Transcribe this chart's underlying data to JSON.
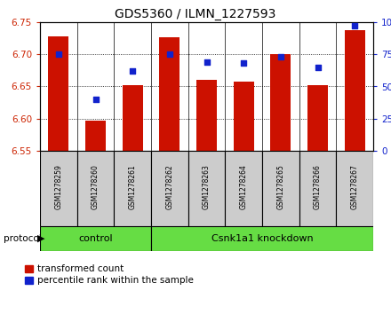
{
  "title": "GDS5360 / ILMN_1227593",
  "samples": [
    "GSM1278259",
    "GSM1278260",
    "GSM1278261",
    "GSM1278262",
    "GSM1278263",
    "GSM1278264",
    "GSM1278265",
    "GSM1278266",
    "GSM1278267"
  ],
  "transformed_counts": [
    6.728,
    6.597,
    6.652,
    6.727,
    6.66,
    6.657,
    6.7,
    6.652,
    6.737
  ],
  "percentile_ranks": [
    75,
    40,
    62,
    75,
    69,
    68,
    73,
    65,
    97
  ],
  "ylim_left": [
    6.55,
    6.75
  ],
  "ylim_right": [
    0,
    100
  ],
  "yticks_left": [
    6.55,
    6.6,
    6.65,
    6.7,
    6.75
  ],
  "yticks_right": [
    0,
    25,
    50,
    75,
    100
  ],
  "bar_color": "#CC1100",
  "dot_color": "#1122CC",
  "control_samples": 3,
  "protocol_label": "protocol",
  "group_labels": [
    "control",
    "Csnk1a1 knockdown"
  ],
  "group_color": "#66DD44",
  "left_tick_color": "#CC2200",
  "right_tick_color": "#1122CC",
  "legend_items": [
    "transformed count",
    "percentile rank within the sample"
  ],
  "bar_width": 0.55,
  "base_value": 6.55,
  "label_bg_color": "#CCCCCC",
  "spine_color": "#000000",
  "grid_color": "#000000"
}
